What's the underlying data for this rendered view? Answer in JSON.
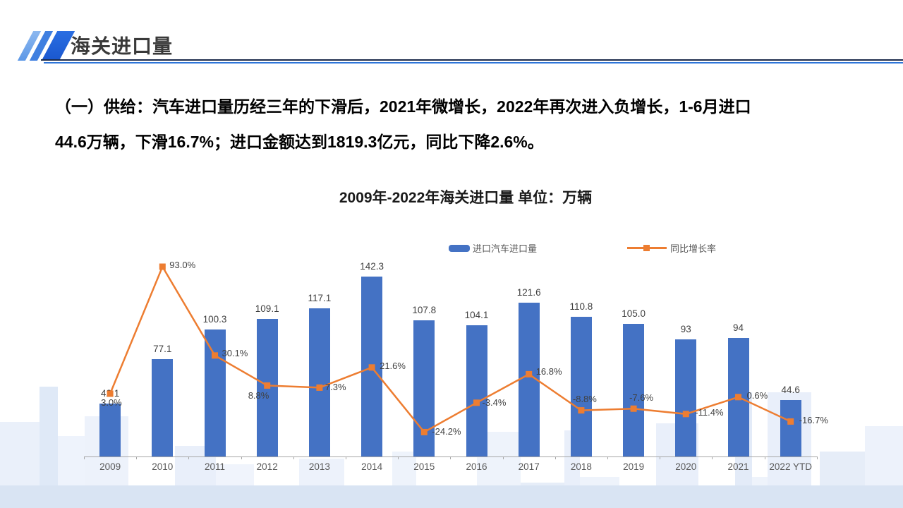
{
  "slide": {
    "header": {
      "title": "海关进口量"
    },
    "body": {
      "line1": "（一）供给：汽车进口量历经三年的下滑后，2021年微增长，2022年再次进入负增长，1-6月进口",
      "line2": "44.6万辆，下滑16.7%；进口金额达到1819.3亿元，同比下降2.6%。"
    }
  },
  "theme": {
    "bar_color": "#4472c4",
    "line_color": "#ed7d31",
    "accent_blue": "#2e75d9",
    "axis_color": "#a6a6a6",
    "data_label_color": "#404040",
    "tick_label_color": "#595959",
    "bottom_band_color": "#d9e4f3"
  },
  "chart_data": {
    "type": "bar",
    "combo": "bar+line",
    "title": "2009年-2022年海关进口量 单位：万辆",
    "categories": [
      "2009",
      "2010",
      "2011",
      "2012",
      "2013",
      "2014",
      "2015",
      "2016",
      "2017",
      "2018",
      "2019",
      "2020",
      "2021",
      "2022 YTD"
    ],
    "series": [
      {
        "name": "进口汽车进口量",
        "type": "bar",
        "color": "#4472c4",
        "values": [
          42.1,
          77.1,
          100.3,
          109.1,
          117.1,
          142.3,
          107.8,
          104.1,
          121.6,
          110.8,
          105.0,
          93,
          94,
          44.6
        ],
        "labels": [
          "42.1",
          "77.1",
          "100.3",
          "109.1",
          "117.1",
          "142.3",
          "107.8",
          "104.1",
          "121.6",
          "110.8",
          "105.0",
          "93",
          "94",
          "44.6"
        ]
      },
      {
        "name": "同比增长率",
        "type": "line",
        "color": "#ed7d31",
        "unit": "%",
        "values": [
          3.0,
          93.0,
          30.1,
          8.8,
          7.3,
          21.6,
          -24.2,
          -3.4,
          16.8,
          -8.8,
          -7.6,
          -11.4,
          0.6,
          -16.7
        ],
        "labels": [
          "3.0%",
          "93.0%",
          "30.1%",
          "8.8%",
          "7.3%",
          "21.6%",
          "-24.2%",
          "-3.4%",
          "16.8%",
          "-8.8%",
          "-7.6%",
          "-11.4%",
          "0.6%",
          "-16.7%"
        ]
      }
    ],
    "legend_position": "top",
    "gridlines": false,
    "y_axis_visible": false,
    "x_axis": {
      "visible": true,
      "ticks": true
    }
  }
}
